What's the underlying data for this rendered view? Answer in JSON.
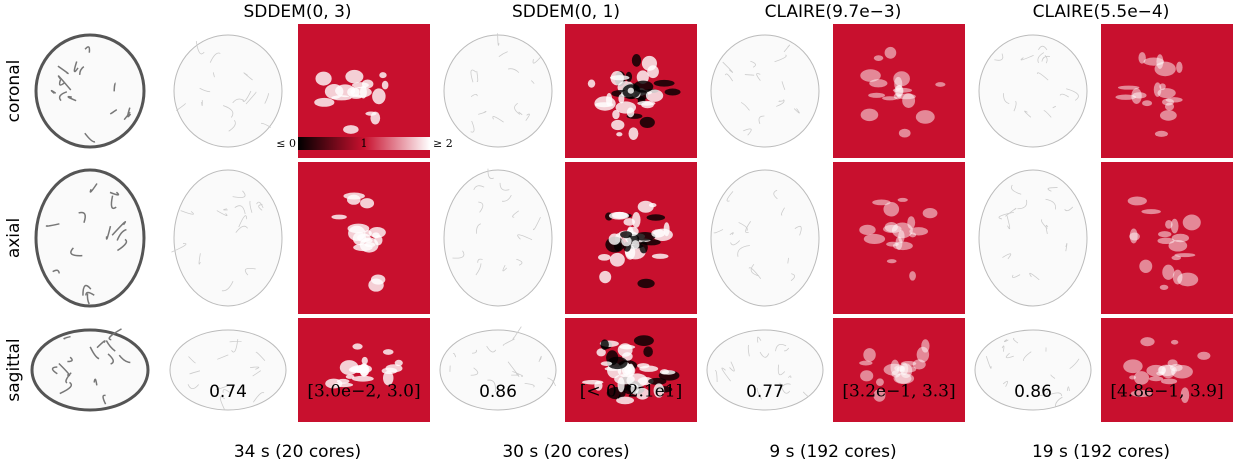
{
  "rows": [
    "coronal",
    "axial",
    "sagittal"
  ],
  "columns": [
    {
      "title": "SDDEM(0, 3)",
      "score": "0.74",
      "range": "[3.0e−2, 3.0]",
      "time": "34 s (20 cores)"
    },
    {
      "title": "SDDEM(0, 1)",
      "score": "0.86",
      "range": "[< 0, 2.1e1]",
      "time": "30 s (20 cores)"
    },
    {
      "title": "CLAIRE(9.7e−3)",
      "score": "0.77",
      "range": "[3.2e−1, 3.3]",
      "time": "9 s (192 cores)"
    },
    {
      "title": "CLAIRE(5.5e−4)",
      "score": "0.86",
      "range": "[4.8e−1, 3.9]",
      "time": "19 s (192 cores)"
    }
  ],
  "colorbar": {
    "min_label": "≤ 0",
    "mid_label": "1",
    "max_label": "≥ 2"
  }
}
